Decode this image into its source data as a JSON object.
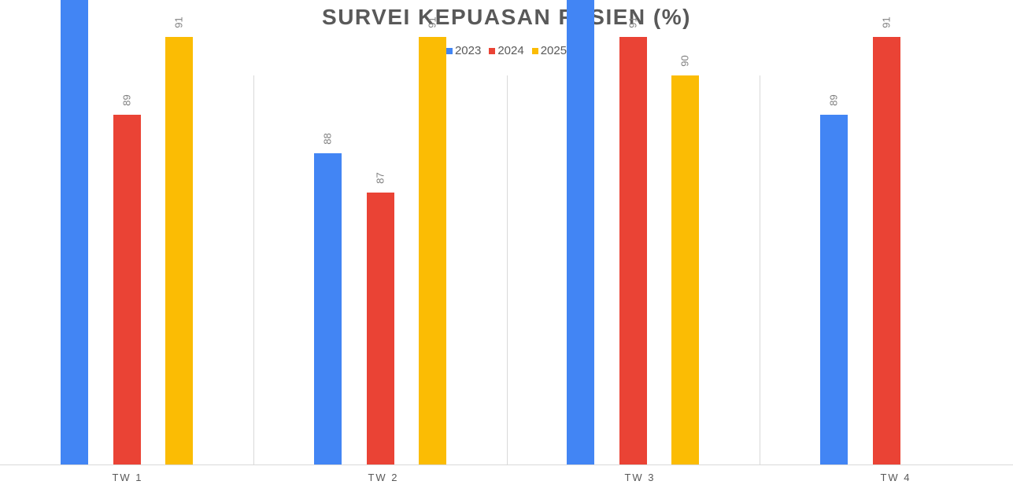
{
  "chart_data": {
    "type": "bar",
    "title": "SURVEI KEPUASAN PASIEN (%)",
    "categories": [
      "TW 1",
      "TW 2",
      "TW 3",
      "TW 4"
    ],
    "series": [
      {
        "name": "2023",
        "color": "#4285f4",
        "values": [
          92,
          88,
          93,
          89
        ]
      },
      {
        "name": "2024",
        "color": "#ea4335",
        "values": [
          89,
          87,
          91,
          91
        ]
      },
      {
        "name": "2025",
        "color": "#fbbc04",
        "values": [
          91,
          91,
          90,
          null
        ]
      }
    ],
    "xlabel": "",
    "ylabel": "",
    "ylim": [
      80,
      94
    ],
    "grid": false,
    "legend_position": "top",
    "data_labels": true
  },
  "title": "SURVEI KEPUASAN PASIEN (%)",
  "legend": [
    "2023",
    "2024",
    "2025"
  ],
  "categories": [
    "TW 1",
    "TW 2",
    "TW 3",
    "TW 4"
  ]
}
